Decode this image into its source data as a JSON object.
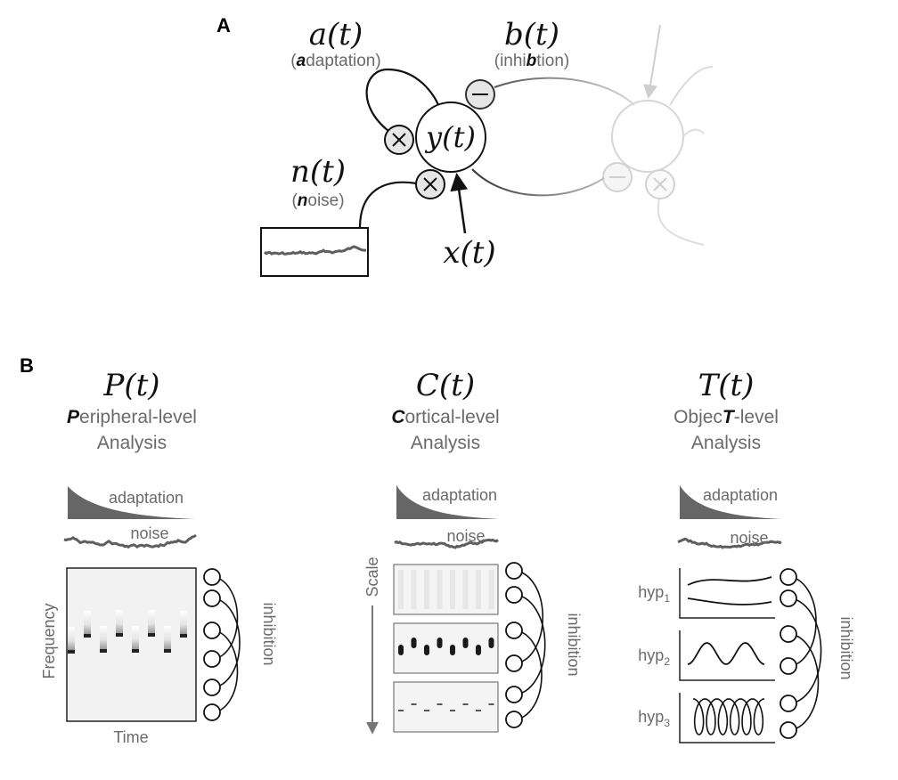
{
  "panel_a": {
    "letter": "A",
    "adaptation": {
      "symbol": "a(t)",
      "first": "a",
      "rest": "daptation"
    },
    "inhibition": {
      "symbol": "b(t)",
      "pre": "inhi",
      "bold": "b",
      "post": "tion"
    },
    "noise": {
      "symbol": "n(t)",
      "first": "n",
      "rest": "oise"
    },
    "unit": "y(t)",
    "input": "x(t)",
    "minus_glyph": "—",
    "times_glyph": "×"
  },
  "panel_b": {
    "letter": "B",
    "peripheral": {
      "symbol": "P(t)",
      "title_first": "P",
      "title_rest": "eripheral-level",
      "title_line2": "Analysis",
      "adaptation": "adaptation",
      "noise": "noise",
      "y_axis": "Frequency",
      "x_axis": "Time",
      "inhibition": "inhibition"
    },
    "cortical": {
      "symbol": "C(t)",
      "title_first": "C",
      "title_rest": "ortical-level",
      "title_line2": "Analysis",
      "adaptation": "adaptation",
      "noise": "noise",
      "scale_label": "Scale",
      "inhibition": "inhibition"
    },
    "object": {
      "symbol": "T(t)",
      "title_pre": "Objec",
      "title_bold": "T",
      "title_post": "-level",
      "title_line2": "Analysis",
      "adaptation": "adaptation",
      "noise": "noise",
      "hyp_base": "hyp",
      "hyp_subs": [
        "1",
        "2",
        "3"
      ],
      "inhibition": "inhibition"
    }
  },
  "colors": {
    "ink": "#111111",
    "grey_text": "#6a6a6a",
    "noise_trace": "#5e5e5e",
    "adaptation_fill": "#666666",
    "faded": "#d4d4d4"
  }
}
